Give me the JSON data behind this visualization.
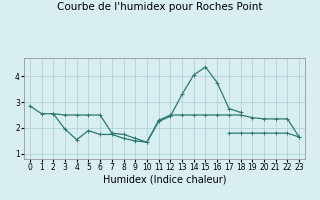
{
  "title": "Courbe de l'humidex pour Roches Point",
  "xlabel": "Humidex (Indice chaleur)",
  "line_color": "#2d7a6e",
  "bg_color": "#d8eef0",
  "grid_color": "#a8cdd2",
  "ylim": [
    0.8,
    4.7
  ],
  "xlim": [
    -0.5,
    23.5
  ],
  "yticks": [
    1,
    2,
    3,
    4
  ],
  "xticks": [
    0,
    1,
    2,
    3,
    4,
    5,
    6,
    7,
    8,
    9,
    10,
    11,
    12,
    13,
    14,
    15,
    16,
    17,
    18,
    19,
    20,
    21,
    22,
    23
  ],
  "title_fontsize": 7.5,
  "label_fontsize": 7,
  "tick_fontsize": 5.5,
  "line1_x": [
    0,
    1,
    2,
    3,
    4,
    5,
    6,
    7,
    8,
    9,
    10,
    11,
    12,
    13,
    14,
    15,
    16,
    17,
    18
  ],
  "line1_y": [
    2.85,
    2.55,
    2.55,
    1.95,
    1.55,
    1.9,
    1.75,
    1.75,
    1.6,
    1.5,
    1.45,
    2.25,
    2.45,
    3.3,
    4.05,
    4.35,
    3.75,
    2.75,
    2.6
  ],
  "line2_x": [
    2,
    3,
    4,
    5,
    6,
    7,
    8,
    9,
    10,
    11,
    12,
    13,
    14,
    15,
    16,
    17,
    18,
    19,
    20,
    21,
    22,
    23
  ],
  "line2_y": [
    2.55,
    2.5,
    2.5,
    2.5,
    2.5,
    1.8,
    1.75,
    1.6,
    1.45,
    2.3,
    2.5,
    2.5,
    2.5,
    2.5,
    2.5,
    2.5,
    2.5,
    2.4,
    2.35,
    2.35,
    2.35,
    1.65
  ],
  "line3_x": [
    17,
    18,
    19,
    20,
    21,
    22,
    23
  ],
  "line3_y": [
    1.8,
    1.8,
    1.8,
    1.8,
    1.8,
    1.8,
    1.65
  ]
}
